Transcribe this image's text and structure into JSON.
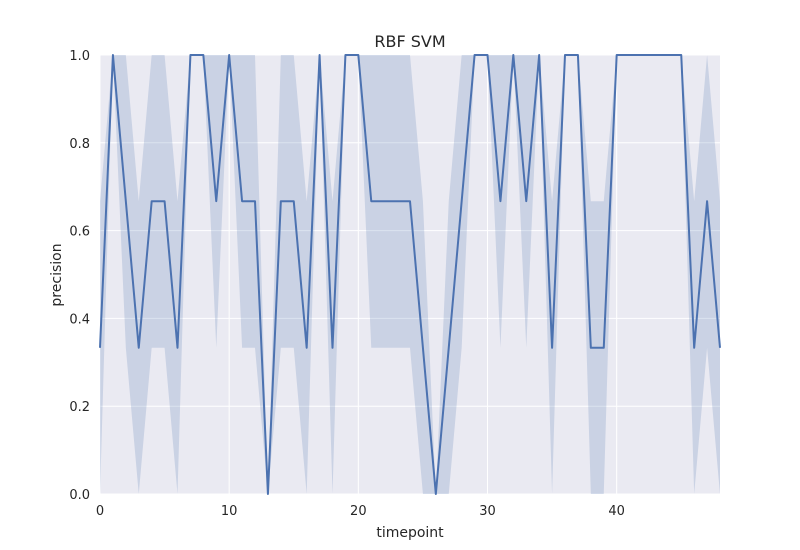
{
  "chart_data": {
    "type": "line",
    "title": "RBF SVM",
    "xlabel": "timepoint",
    "ylabel": "precision",
    "xlim": [
      0,
      48
    ],
    "ylim": [
      0.0,
      1.0
    ],
    "xticks": [
      0,
      10,
      20,
      30,
      40
    ],
    "xtick_labels": [
      "0",
      "10",
      "20",
      "30",
      "40"
    ],
    "yticks": [
      0.0,
      0.2,
      0.4,
      0.6,
      0.8,
      1.0
    ],
    "ytick_labels": [
      "0.0",
      "0.2",
      "0.4",
      "0.6",
      "0.8",
      "1.0"
    ],
    "grid": true,
    "style": "seaborn-darkgrid",
    "colors": {
      "background": "#eaeaf2",
      "grid": "#ffffff",
      "line": "#4c72b0",
      "band": "#4c72b0"
    },
    "series": [
      {
        "x": [
          0,
          1,
          2,
          3,
          4,
          5,
          6,
          7,
          8,
          9,
          10,
          11,
          12,
          13,
          14,
          15,
          16,
          17,
          18,
          19,
          20,
          21,
          22,
          23,
          24,
          25,
          26,
          27,
          28,
          29,
          30,
          31,
          32,
          33,
          34,
          35,
          36,
          37,
          38,
          39,
          40,
          41,
          42,
          43,
          44,
          45,
          46,
          47,
          48
        ],
        "values": [
          0.333,
          1.0,
          0.667,
          0.333,
          0.667,
          0.667,
          0.333,
          1.0,
          1.0,
          0.667,
          1.0,
          0.667,
          0.667,
          0.0,
          0.667,
          0.667,
          0.333,
          1.0,
          0.333,
          1.0,
          1.0,
          0.667,
          0.667,
          0.667,
          0.667,
          0.333,
          0.0,
          0.333,
          0.667,
          1.0,
          1.0,
          0.667,
          1.0,
          0.667,
          1.0,
          0.333,
          1.0,
          1.0,
          0.333,
          0.333,
          1.0,
          1.0,
          1.0,
          1.0,
          1.0,
          1.0,
          0.333,
          0.667,
          0.333
        ],
        "ci_lower": [
          0.0,
          1.0,
          0.333,
          0.0,
          0.333,
          0.333,
          0.0,
          1.0,
          1.0,
          0.333,
          1.0,
          0.333,
          0.333,
          0.0,
          0.333,
          0.333,
          0.0,
          1.0,
          0.0,
          1.0,
          1.0,
          0.333,
          0.333,
          0.333,
          0.333,
          0.0,
          0.0,
          0.0,
          0.333,
          1.0,
          1.0,
          0.333,
          1.0,
          0.333,
          1.0,
          0.0,
          1.0,
          1.0,
          0.0,
          0.0,
          1.0,
          1.0,
          1.0,
          1.0,
          1.0,
          1.0,
          0.0,
          0.333,
          0.0
        ],
        "ci_upper": [
          0.667,
          1.0,
          1.0,
          0.667,
          1.0,
          1.0,
          0.667,
          1.0,
          1.0,
          1.0,
          1.0,
          1.0,
          1.0,
          0.0,
          1.0,
          1.0,
          0.667,
          1.0,
          0.667,
          1.0,
          1.0,
          1.0,
          1.0,
          1.0,
          1.0,
          0.667,
          0.0,
          0.667,
          1.0,
          1.0,
          1.0,
          1.0,
          1.0,
          1.0,
          1.0,
          0.667,
          1.0,
          1.0,
          0.667,
          0.667,
          1.0,
          1.0,
          1.0,
          1.0,
          1.0,
          1.0,
          0.667,
          1.0,
          0.667
        ]
      }
    ]
  }
}
